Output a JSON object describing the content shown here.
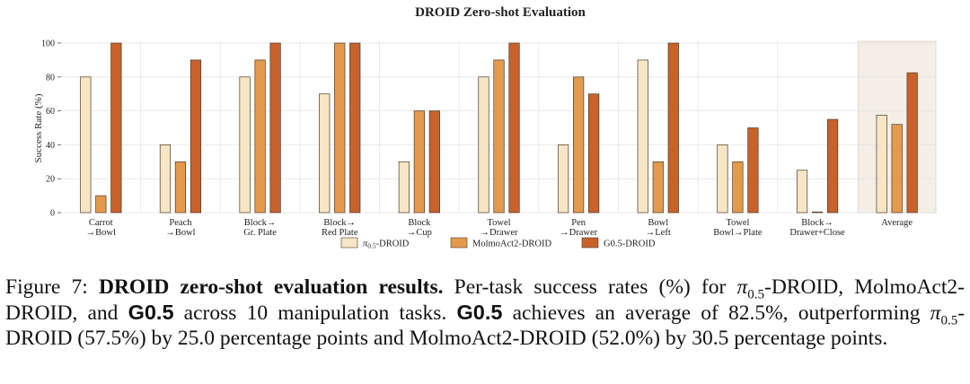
{
  "chart_data": {
    "type": "bar",
    "title": "DROID Zero-shot Evaluation",
    "ylabel": "Success Rate (%)",
    "ylim": [
      0,
      100
    ],
    "yticks": [
      "0",
      "20",
      "40",
      "60",
      "80",
      "100"
    ],
    "categories": [
      [
        "Carrot",
        "→Bowl"
      ],
      [
        "Peach",
        "→Bowl"
      ],
      [
        "Block→",
        "Gr. Plate"
      ],
      [
        "Block→",
        "Red Plate"
      ],
      [
        "Block",
        "→Cup"
      ],
      [
        "Towel",
        "→Drawer"
      ],
      [
        "Pen",
        "→Drawer"
      ],
      [
        "Bowl",
        "→Left"
      ],
      [
        "Towel",
        "Bowl→Plate"
      ],
      [
        "Block→",
        "Drawer+Close"
      ],
      [
        "Average"
      ]
    ],
    "highlight_category": "Average",
    "series": [
      {
        "name": "π",
        "name_sub": "0.5",
        "name_rest": "-DROID",
        "color": "#f7e6c4",
        "values": [
          80,
          40,
          80,
          70,
          30,
          80,
          40,
          90,
          40,
          25,
          57.5
        ]
      },
      {
        "name": "MolmoAct2-DROID",
        "color": "#e39a4d",
        "values": [
          10,
          30,
          90,
          100,
          60,
          90,
          80,
          30,
          30,
          0,
          52.0
        ]
      },
      {
        "name": "G0.5-DROID",
        "color": "#c8622a",
        "values": [
          100,
          90,
          100,
          100,
          60,
          100,
          70,
          100,
          50,
          55,
          82.5
        ]
      }
    ],
    "grid": true,
    "legend_position": "bottom-center"
  },
  "caption": {
    "label": "Figure 7:",
    "bold_title": "DROID zero-shot evaluation results.",
    "s1": "Per-task success rates (%) for ",
    "pi": "π",
    "pi_sub": "0.5",
    "s2": "-DROID, MolmoAct2-DROID, and ",
    "model": "G0.5",
    "s3": " across 10 manipulation tasks. ",
    "model2": "G0.5",
    "s4": " achieves an average of 82.5%, outperforming ",
    "pi2": "π",
    "pi2_sub": "0.5",
    "s5": "-DROID (57.5%) by 25.0 percentage points and MolmoAct2-DROID (52.0%) by 30.5 percentage points."
  }
}
